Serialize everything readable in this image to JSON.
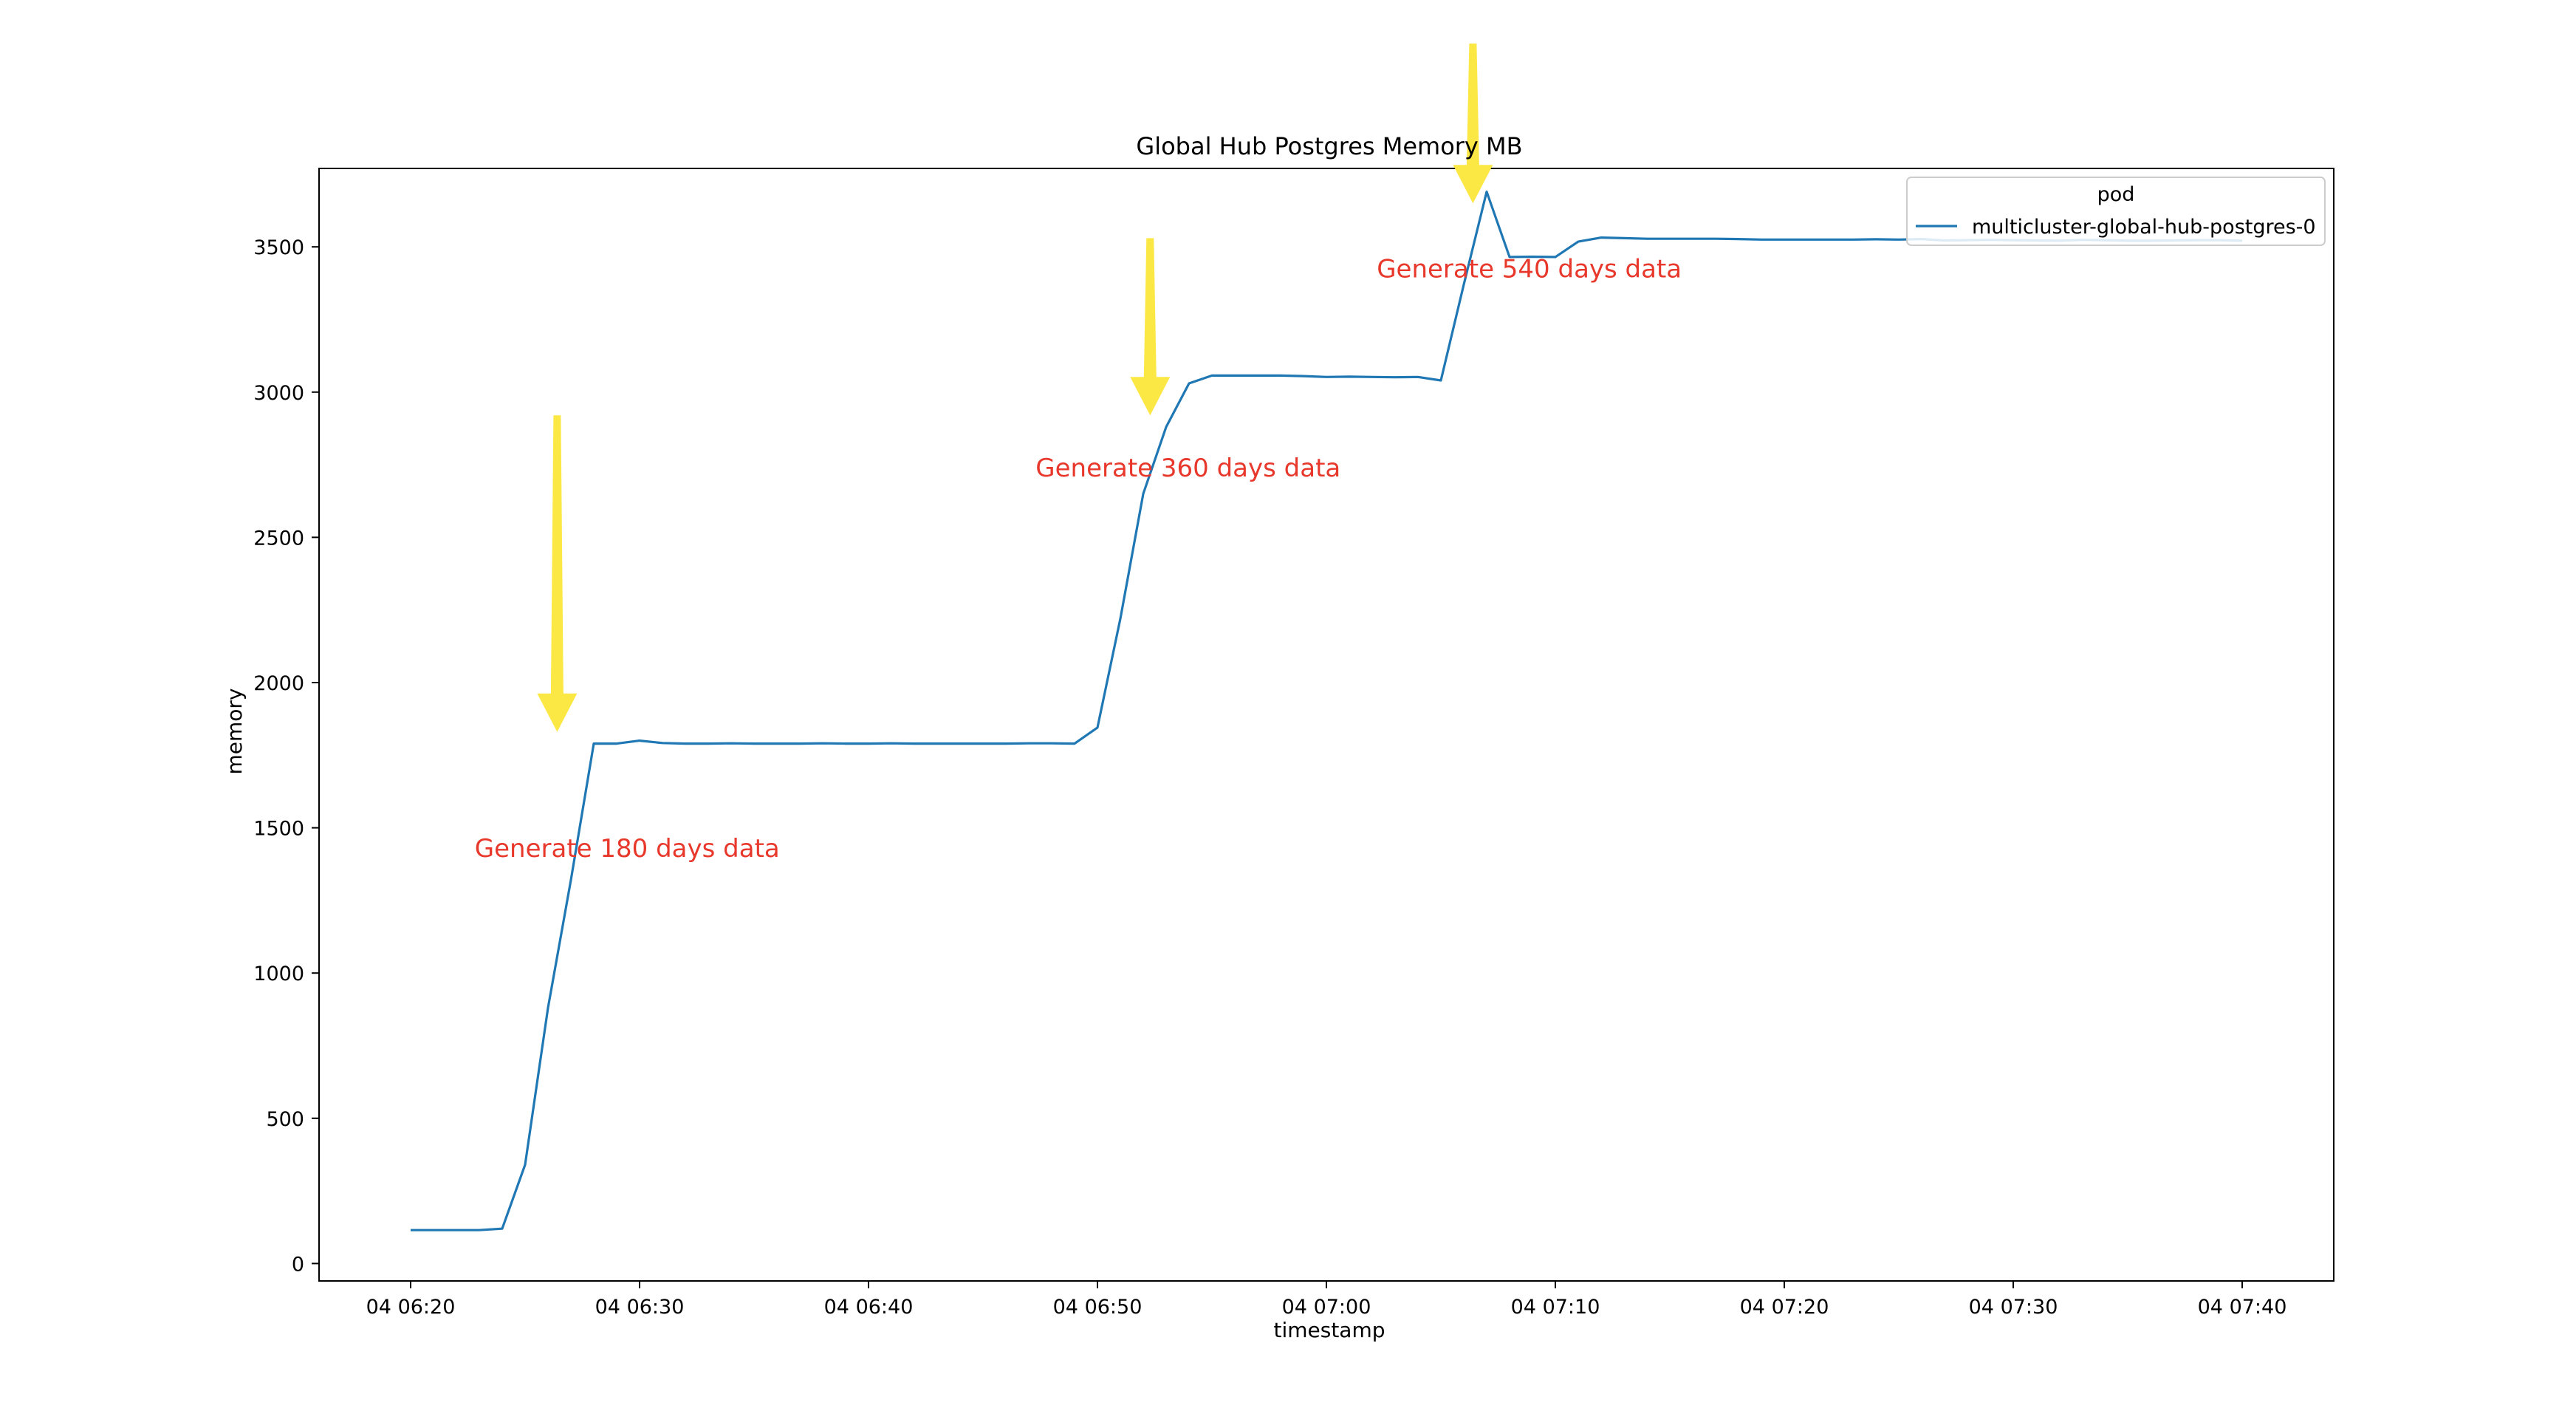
{
  "chart_data": {
    "type": "line",
    "title": "Global Hub Postgres Memory MB",
    "xlabel": "timestamp",
    "ylabel": "memory",
    "xlim": [
      "04 06:16",
      "04 07:44"
    ],
    "ylim": [
      -60,
      3770
    ],
    "x_ticks": [
      "04 06:20",
      "04 06:30",
      "04 06:40",
      "04 06:50",
      "04 07:00",
      "04 07:10",
      "04 07:20",
      "04 07:30",
      "04 07:40"
    ],
    "y_ticks": [
      0,
      500,
      1000,
      1500,
      2000,
      2500,
      3000,
      3500
    ],
    "grid": false,
    "legend": {
      "title": "pod",
      "position": "top-right"
    },
    "series": [
      {
        "name": "multicluster-global-hub-postgres-0",
        "color": "#1f77b4",
        "points": [
          [
            "04 06:20",
            115
          ],
          [
            "04 06:21",
            115
          ],
          [
            "04 06:22",
            115
          ],
          [
            "04 06:23",
            115
          ],
          [
            "04 06:24",
            120
          ],
          [
            "04 06:25",
            340
          ],
          [
            "04 06:26",
            880
          ],
          [
            "04 06:27",
            1320
          ],
          [
            "04 06:28",
            1790
          ],
          [
            "04 06:29",
            1790
          ],
          [
            "04 06:30",
            1800
          ],
          [
            "04 06:31",
            1792
          ],
          [
            "04 06:32",
            1790
          ],
          [
            "04 06:33",
            1790
          ],
          [
            "04 06:34",
            1791
          ],
          [
            "04 06:35",
            1790
          ],
          [
            "04 06:36",
            1790
          ],
          [
            "04 06:37",
            1790
          ],
          [
            "04 06:38",
            1791
          ],
          [
            "04 06:39",
            1790
          ],
          [
            "04 06:40",
            1790
          ],
          [
            "04 06:41",
            1791
          ],
          [
            "04 06:42",
            1790
          ],
          [
            "04 06:43",
            1790
          ],
          [
            "04 06:44",
            1790
          ],
          [
            "04 06:45",
            1790
          ],
          [
            "04 06:46",
            1790
          ],
          [
            "04 06:47",
            1791
          ],
          [
            "04 06:48",
            1791
          ],
          [
            "04 06:49",
            1790
          ],
          [
            "04 06:50",
            1845
          ],
          [
            "04 06:51",
            2220
          ],
          [
            "04 06:52",
            2650
          ],
          [
            "04 06:53",
            2880
          ],
          [
            "04 06:54",
            3030
          ],
          [
            "04 06:55",
            3057
          ],
          [
            "04 06:56",
            3057
          ],
          [
            "04 06:57",
            3057
          ],
          [
            "04 06:58",
            3057
          ],
          [
            "04 06:59",
            3055
          ],
          [
            "04 07:00",
            3052
          ],
          [
            "04 07:01",
            3053
          ],
          [
            "04 07:02",
            3052
          ],
          [
            "04 07:03",
            3051
          ],
          [
            "04 07:04",
            3052
          ],
          [
            "04 07:05",
            3040
          ],
          [
            "04 07:06",
            3370
          ],
          [
            "04 07:07",
            3690
          ],
          [
            "04 07:08",
            3465
          ],
          [
            "04 07:09",
            3466
          ],
          [
            "04 07:10",
            3465
          ],
          [
            "04 07:11",
            3518
          ],
          [
            "04 07:12",
            3532
          ],
          [
            "04 07:13",
            3530
          ],
          [
            "04 07:14",
            3528
          ],
          [
            "04 07:15",
            3528
          ],
          [
            "04 07:16",
            3528
          ],
          [
            "04 07:17",
            3528
          ],
          [
            "04 07:18",
            3527
          ],
          [
            "04 07:19",
            3525
          ],
          [
            "04 07:20",
            3525
          ],
          [
            "04 07:21",
            3525
          ],
          [
            "04 07:22",
            3525
          ],
          [
            "04 07:23",
            3525
          ],
          [
            "04 07:24",
            3526
          ],
          [
            "04 07:25",
            3525
          ],
          [
            "04 07:26",
            3527
          ],
          [
            "04 07:27",
            3522
          ],
          [
            "04 07:28",
            3523
          ],
          [
            "04 07:29",
            3524
          ],
          [
            "04 07:30",
            3523
          ],
          [
            "04 07:31",
            3522
          ],
          [
            "04 07:32",
            3521
          ],
          [
            "04 07:33",
            3524
          ],
          [
            "04 07:34",
            3523
          ],
          [
            "04 07:35",
            3521
          ],
          [
            "04 07:36",
            3521
          ],
          [
            "04 07:37",
            3522
          ],
          [
            "04 07:38",
            3523
          ],
          [
            "04 07:39",
            3523
          ],
          [
            "04 07:40",
            3521
          ]
        ]
      }
    ],
    "annotations": [
      {
        "text": "Generate 180 days data",
        "at": [
          "04 06:22.8",
          1400
        ],
        "color": "#e8382c"
      },
      {
        "text": "Generate 360 days data",
        "at": [
          "04 06:47.3",
          2710
        ],
        "color": "#e8382c"
      },
      {
        "text": "Generate 540 days data",
        "at": [
          "04 07:02.2",
          3395
        ],
        "color": "#e8382c"
      }
    ],
    "arrows": [
      {
        "name": "arrow-180",
        "from": [
          "04 06:26.4",
          2920
        ],
        "to": [
          "04 06:26.4",
          1830
        ],
        "color": "#fbe845"
      },
      {
        "name": "arrow-360",
        "from": [
          "04 06:52.3",
          3530
        ],
        "to": [
          "04 06:52.3",
          2920
        ],
        "color": "#fbe845"
      },
      {
        "name": "arrow-540",
        "from": [
          "04 07:06.4",
          4200
        ],
        "to": [
          "04 07:06.4",
          3650
        ],
        "color": "#fbe845"
      }
    ]
  }
}
